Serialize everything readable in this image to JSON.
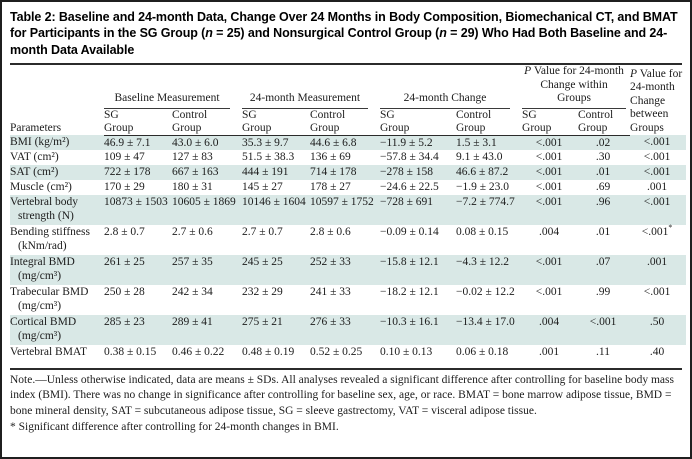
{
  "title": {
    "segments": [
      {
        "t": "Table 2: Baseline and 24-month Data, Change Over 24 Months in Body Composition, Biomechanical CT, and BMAT for Participants in the SG Group (",
        "i": false
      },
      {
        "t": "n",
        "i": true
      },
      {
        "t": " = 25) and Nonsurgical Control Group (",
        "i": false
      },
      {
        "t": "n",
        "i": true
      },
      {
        "t": " = 29) Who Had Both Baseline and 24-month Data Available",
        "i": false
      }
    ]
  },
  "table": {
    "parameters_label": "Parameters",
    "groups": [
      {
        "label": "Baseline Measurement",
        "italic_first_char": false
      },
      {
        "label": "24-month Measurement",
        "italic_first_char": false
      },
      {
        "label": "24-month Change",
        "italic_first_char": false
      },
      {
        "label": "P Value for 24-month Change within Groups",
        "italic_first_char": true
      }
    ],
    "between_group_label": {
      "label": "P Value for 24-month Change between Groups",
      "italic_first_char": true
    },
    "sub_labels": [
      "SG Group",
      "Control Group"
    ],
    "rows": [
      {
        "param": [
          "BMI (kg/m²)"
        ],
        "values": [
          "46.9 ± 7.1",
          "43.0 ± 6.0",
          "35.3 ± 9.7",
          "44.6 ± 6.8",
          "−11.9 ± 5.2",
          "1.5 ± 3.1",
          "<.001",
          ".02",
          "<.001"
        ],
        "shaded": true
      },
      {
        "param": [
          "VAT (cm²)"
        ],
        "values": [
          "109 ± 47",
          "127 ± 83",
          "51.5 ± 38.3",
          "136 ± 69",
          "−57.8 ± 34.4",
          "9.1 ± 43.0",
          "<.001",
          ".30",
          "<.001"
        ],
        "shaded": false
      },
      {
        "param": [
          "SAT (cm²)"
        ],
        "values": [
          "722 ± 178",
          "667 ± 163",
          "444 ± 191",
          "714 ± 178",
          "−278 ± 158",
          "46.6 ± 87.2",
          "<.001",
          ".01",
          "<.001"
        ],
        "shaded": true
      },
      {
        "param": [
          "Muscle (cm²)"
        ],
        "values": [
          "170 ± 29",
          "180 ± 31",
          "145 ± 27",
          "178 ± 27",
          "−24.6 ± 22.5",
          "−1.9 ± 23.0",
          "<.001",
          ".69",
          ".001"
        ],
        "shaded": false
      },
      {
        "param": [
          "Vertebral body",
          "strength (N)"
        ],
        "values": [
          "10873 ± 1503",
          "10605 ± 1869",
          "10146 ± 1604",
          "10597 ± 1752",
          "−728 ± 691",
          "−7.2 ± 774.7",
          "<.001",
          ".96",
          "<.001"
        ],
        "shaded": true
      },
      {
        "param": [
          "Bending stiffness",
          "(kNm/rad)"
        ],
        "values": [
          "2.8 ± 0.7",
          "2.7 ± 0.6",
          "2.7 ± 0.7",
          "2.8 ± 0.6",
          "−0.09 ± 0.14",
          "0.08 ± 0.15",
          ".004",
          ".01",
          "<.001*"
        ],
        "shaded": false
      },
      {
        "param": [
          "Integral BMD",
          "(mg/cm³)"
        ],
        "values": [
          "261 ± 25",
          "257 ± 35",
          "245 ± 25",
          "252 ± 33",
          "−15.8 ± 12.1",
          "−4.3 ± 12.2",
          "<.001",
          ".07",
          ".001"
        ],
        "shaded": true
      },
      {
        "param": [
          "Trabecular BMD",
          "(mg/cm³)"
        ],
        "values": [
          "250 ± 28",
          "242 ± 34",
          "232 ± 29",
          "241 ± 33",
          "−18.2 ± 12.1",
          "−0.02 ± 12.2",
          "<.001",
          ".99",
          "<.001"
        ],
        "shaded": false
      },
      {
        "param": [
          "Cortical BMD",
          "(mg/cm³)"
        ],
        "values": [
          "285 ± 23",
          "289 ± 41",
          "275 ± 21",
          "276 ± 33",
          "−10.3 ± 16.1",
          "−13.4 ± 17.0",
          ".004",
          "<.001",
          ".50"
        ],
        "shaded": true
      },
      {
        "param": [
          "Vertebral BMAT"
        ],
        "values": [
          "0.38 ± 0.15",
          "0.46 ± 0.22",
          "0.48 ± 0.19",
          "0.52 ± 0.25",
          "0.10 ± 0.13",
          "0.06 ± 0.18",
          ".001",
          ".11",
          ".40"
        ],
        "shaded": false
      }
    ]
  },
  "footnotes": {
    "note": "Note.—Unless otherwise indicated, data are means ± SDs. All analyses revealed a significant difference after controlling for baseline body mass index (BMI). There was no change in significance after controlling for baseline sex, age, or race. BMAT = bone marrow adipose tissue, BMD = bone mineral density, SAT = subcutaneous adipose tissue, SG = sleeve gastrectomy, VAT = visceral adipose tissue.",
    "asterisk": "* Significant difference after controlling for 24-month changes in BMI."
  },
  "colors": {
    "shaded_row": "#d9e8e6",
    "rule": "#2b2b2b",
    "text": "#1c1c1c"
  }
}
